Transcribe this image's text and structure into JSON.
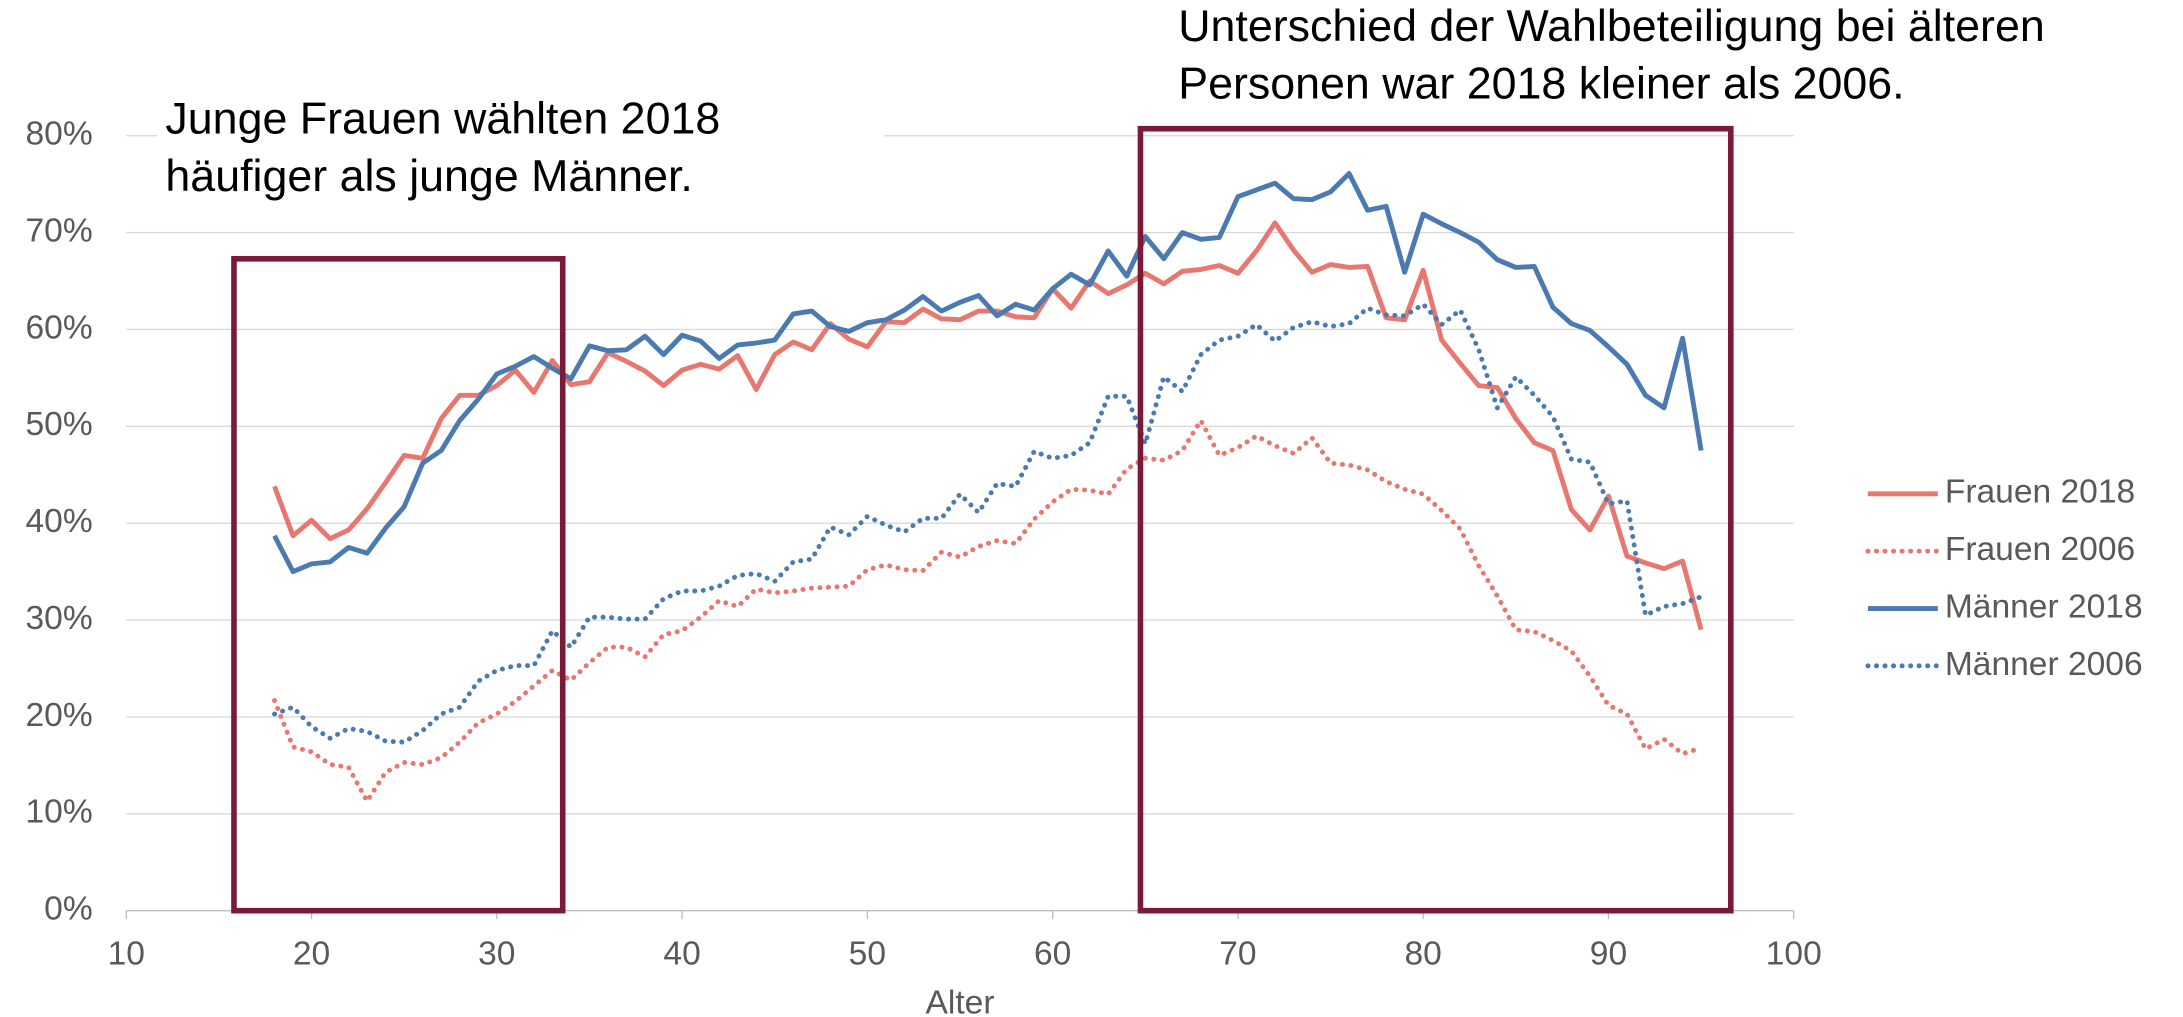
{
  "chart_data": {
    "type": "line",
    "x_label": "Alter",
    "xlim": [
      10,
      100
    ],
    "xticks": [
      10,
      20,
      30,
      40,
      50,
      60,
      70,
      80,
      90,
      100
    ],
    "ylim": [
      0,
      80
    ],
    "yticks": [
      {
        "value": 0,
        "label": "0%"
      },
      {
        "value": 10,
        "label": "10%"
      },
      {
        "value": 20,
        "label": "20%"
      },
      {
        "value": 30,
        "label": "30%"
      },
      {
        "value": 40,
        "label": "40%"
      },
      {
        "value": 50,
        "label": "50%"
      },
      {
        "value": 60,
        "label": "60%"
      },
      {
        "value": 70,
        "label": "70%"
      },
      {
        "value": 80,
        "label": "80%"
      }
    ],
    "grid": true,
    "legend": "right",
    "annotations": [
      [
        "Junge Frauen wählten 2018",
        "häufiger als junge Männer."
      ],
      [
        "Unterschied der Wahlbeteiligung bei älteren",
        "Personen war 2018 kleiner als 2006."
      ]
    ],
    "x": [
      18,
      19,
      20,
      21,
      22,
      23,
      24,
      25,
      26,
      27,
      28,
      29,
      30,
      31,
      32,
      33,
      34,
      35,
      36,
      37,
      38,
      39,
      40,
      41,
      42,
      43,
      44,
      45,
      46,
      47,
      48,
      49,
      50,
      51,
      52,
      53,
      54,
      55,
      56,
      57,
      58,
      59,
      60,
      61,
      62,
      63,
      64,
      65,
      66,
      67,
      68,
      69,
      70,
      71,
      72,
      73,
      74,
      75,
      76,
      77,
      78,
      79,
      80,
      81,
      82,
      83,
      84,
      85,
      86,
      87,
      88,
      89,
      90,
      91,
      92,
      93,
      94,
      95
    ],
    "series": [
      {
        "name": "Frauen 2018",
        "color": "#e8776f",
        "style": "solid",
        "values": [
          43.8,
          38.7,
          40.3,
          38.4,
          39.3,
          41.5,
          44.2,
          47,
          46.7,
          50.8,
          53.2,
          53.2,
          54.2,
          55.8,
          53.5,
          56.8,
          54.3,
          54.6,
          57.6,
          56.7,
          55.7,
          54.2,
          55.8,
          56.4,
          55.9,
          57.3,
          53.8,
          57.4,
          58.7,
          57.9,
          60.6,
          59,
          58.2,
          60.8,
          60.7,
          62.1,
          61.1,
          61,
          61.9,
          61.9,
          61.3,
          61.2,
          64.2,
          62.2,
          65,
          63.7,
          64.6,
          65.8,
          64.7,
          66,
          66.2,
          66.6,
          65.8,
          68.1,
          71,
          68.2,
          65.9,
          66.7,
          66.4,
          66.5,
          61.2,
          61,
          66.1,
          58.9,
          56.5,
          54.2,
          54,
          50.8,
          48.3,
          47.5,
          41.4,
          39.3,
          42.8,
          36.6,
          35.9,
          35.3,
          36.1,
          29
        ]
      },
      {
        "name": "Frauen 2006",
        "color": "#e8776f",
        "style": "dotted",
        "values": [
          21.7,
          16.9,
          16.4,
          15.1,
          14.8,
          11.3,
          14.3,
          15.3,
          15.1,
          15.8,
          17.4,
          19.4,
          20.3,
          21.6,
          23.2,
          24.8,
          23.8,
          25.6,
          27.2,
          27.2,
          26.2,
          28.5,
          28.9,
          30.3,
          32,
          31.4,
          33.2,
          32.8,
          33,
          33.3,
          33.4,
          33.5,
          35.2,
          35.7,
          35.2,
          35.1,
          37,
          36.5,
          37.6,
          38.2,
          37.9,
          40.4,
          42.2,
          43.5,
          43.4,
          43,
          45.6,
          46.7,
          46.5,
          47.5,
          50.6,
          47,
          47.8,
          49,
          48,
          47.2,
          48.8,
          46.2,
          46,
          45.5,
          44.3,
          43.5,
          43,
          41.3,
          39.4,
          35.6,
          32.5,
          29,
          28.8,
          27.9,
          26.8,
          24.2,
          21.2,
          20.3,
          16.7,
          17.7,
          16.2,
          16.8
        ]
      },
      {
        "name": "Männer 2018",
        "color": "#4a7ab0",
        "style": "solid",
        "values": [
          38.7,
          35,
          35.8,
          36,
          37.5,
          36.9,
          39.5,
          41.7,
          46.2,
          47.5,
          50.6,
          52.8,
          55.4,
          56.2,
          57.2,
          56,
          54.9,
          58.3,
          57.8,
          57.9,
          59.3,
          57.4,
          59.4,
          58.8,
          57,
          58.4,
          58.6,
          58.9,
          61.6,
          61.9,
          60.3,
          59.8,
          60.7,
          61,
          62,
          63.4,
          61.9,
          62.8,
          63.5,
          61.4,
          62.6,
          62,
          64.2,
          65.7,
          64.6,
          68.1,
          65.5,
          69.6,
          67.3,
          70,
          69.3,
          69.5,
          73.7,
          74.4,
          75.1,
          73.5,
          73.4,
          74.2,
          76.1,
          72.3,
          72.7,
          65.9,
          71.9,
          70.9,
          70,
          69,
          67.2,
          66.4,
          66.5,
          62.3,
          60.6,
          59.9,
          58.2,
          56.4,
          53.2,
          51.9,
          59.1,
          47.5
        ]
      },
      {
        "name": "Männer 2006",
        "color": "#4a7ab0",
        "style": "dotted",
        "values": [
          20.3,
          21,
          19,
          17.8,
          18.8,
          18.5,
          17.5,
          17.4,
          18.6,
          20.3,
          21,
          23.7,
          24.8,
          25.3,
          25.3,
          28.9,
          27.2,
          30.3,
          30.3,
          30.1,
          30.1,
          32.2,
          33,
          33,
          33.5,
          34.6,
          34.8,
          34,
          36,
          36.3,
          39.6,
          38.8,
          40.7,
          39.8,
          39.1,
          40.5,
          40.5,
          43,
          41.1,
          44.1,
          43.8,
          47.4,
          46.7,
          47,
          48.3,
          53.1,
          53.1,
          48.2,
          55.1,
          53.6,
          57.4,
          58.9,
          59.3,
          60.5,
          58.8,
          60.2,
          60.8,
          60.3,
          60.6,
          62.2,
          61.5,
          61.4,
          62.6,
          60.5,
          62,
          57.9,
          51.9,
          55.1,
          53.2,
          51,
          46.6,
          46.3,
          42,
          42.3,
          30.5,
          31.4,
          31.7,
          32.4
        ]
      }
    ]
  }
}
